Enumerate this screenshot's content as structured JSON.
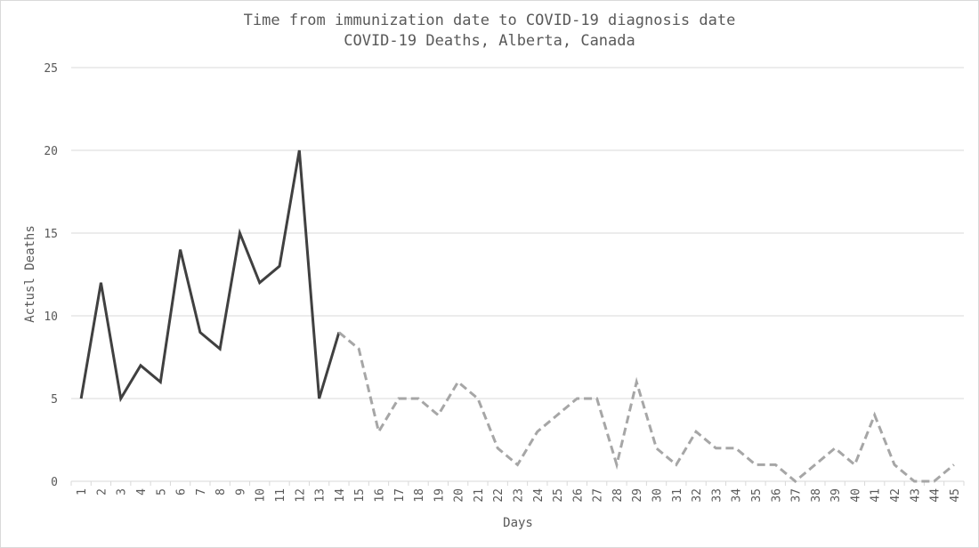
{
  "chart_data": {
    "type": "line",
    "title": "Time from immunization date to COVID-19 diagnosis date",
    "subtitle": "COVID-19 Deaths, Alberta, Canada",
    "xlabel": "Days",
    "ylabel": "Actusl Deaths",
    "ylim": [
      0,
      25
    ],
    "yticks": [
      0,
      5,
      10,
      15,
      20,
      25
    ],
    "grid": true,
    "x": [
      1,
      2,
      3,
      4,
      5,
      6,
      7,
      8,
      9,
      10,
      11,
      12,
      13,
      14,
      15,
      16,
      17,
      18,
      19,
      20,
      21,
      22,
      23,
      24,
      25,
      26,
      27,
      28,
      29,
      30,
      31,
      32,
      33,
      34,
      35,
      36,
      37,
      38,
      39,
      40,
      41,
      42,
      43,
      44,
      45
    ],
    "series": [
      {
        "name": "solid",
        "style": "solid",
        "color": "#404040",
        "x": [
          1,
          2,
          3,
          4,
          5,
          6,
          7,
          8,
          9,
          10,
          11,
          12,
          13,
          14
        ],
        "values": [
          5,
          12,
          5,
          7,
          6,
          14,
          9,
          8,
          15,
          12,
          13,
          20,
          5,
          9
        ]
      },
      {
        "name": "dashed",
        "style": "dashed",
        "color": "#a6a6a6",
        "x": [
          14,
          15,
          16,
          17,
          18,
          19,
          20,
          21,
          22,
          23,
          24,
          25,
          26,
          27,
          28,
          29,
          30,
          31,
          32,
          33,
          34,
          35,
          36,
          37,
          38,
          39,
          40,
          41,
          42,
          43,
          44,
          45
        ],
        "values": [
          9,
          8,
          3,
          5,
          5,
          4,
          6,
          5,
          2,
          1,
          3,
          4,
          5,
          5,
          1,
          6,
          2,
          1,
          3,
          2,
          2,
          1,
          1,
          0,
          1,
          2,
          1,
          4,
          1,
          0,
          0,
          1
        ]
      }
    ]
  }
}
